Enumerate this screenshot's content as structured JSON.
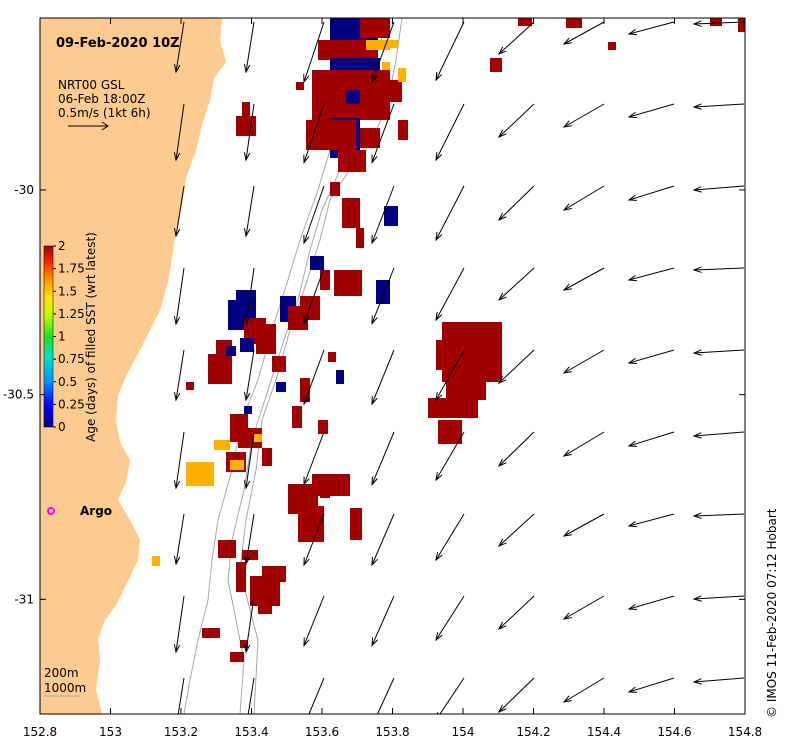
{
  "title": "09-Feb-2020 10Z",
  "legend_vectors": {
    "line1": "NRT00 GSL",
    "line2": "06-Feb 18:00Z",
    "line3": "0.5m/s (1kt 6h)"
  },
  "colorbar": {
    "label": "Age (days) of filled SST (wrt latest)",
    "ticks": [
      "2",
      "1.75",
      "1.5",
      "1.25",
      "1",
      "0.75",
      "0.5",
      "0.25",
      "0"
    ],
    "colors": [
      "#000080",
      "#0000ff",
      "#0080ff",
      "#00c0ff",
      "#00ff80",
      "#80ff00",
      "#ffff00",
      "#ffc000",
      "#ff8000",
      "#ff0000",
      "#a00000"
    ]
  },
  "argo": {
    "label": "Argo",
    "color": "#ff00ff"
  },
  "isobaths": {
    "line1": "200m",
    "line2": "1000m"
  },
  "footer": "©  IMOS 11-Feb-2020 07:12 Hobart",
  "axes": {
    "x_ticks": [
      "152.8",
      "153",
      "153.2",
      "153.4",
      "153.6",
      "153.8",
      "154",
      "154.2",
      "154.4",
      "154.6",
      "154.8"
    ],
    "y_ticks": [
      "-30",
      "-30.5",
      "-31"
    ],
    "xlim": [
      152.8,
      154.8
    ],
    "ylim": [
      -31.28,
      -29.58
    ]
  },
  "colors": {
    "land": "#fdca90",
    "sst_old": "#a00000",
    "sst_new": "#000080",
    "sst_mid": "#ffb000"
  }
}
